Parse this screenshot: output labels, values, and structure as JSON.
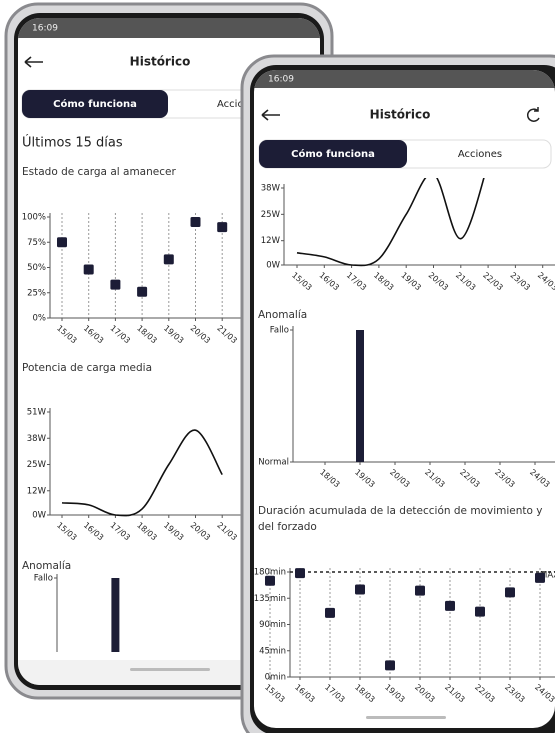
{
  "phones": [
    {
      "status_time": "16:09",
      "title": "Histórico",
      "tabs": [
        "Cómo funciona",
        "Acciones"
      ],
      "heading": "Últimos 15 días",
      "charts": [
        {
          "type": "scatter",
          "title": "Estado de carga al amanecer",
          "categories": [
            "15/03",
            "16/03",
            "17/03",
            "18/03",
            "19/03",
            "20/03",
            "21/03"
          ],
          "values": [
            75,
            48,
            33,
            26,
            58,
            95,
            90
          ],
          "color": "#1c1d36",
          "grid": "x",
          "ylim": [
            0,
            100
          ],
          "yticks": [
            {
              "value": 0,
              "label": "0%"
            },
            {
              "value": 25,
              "label": "25%"
            },
            {
              "value": 50,
              "label": "50%"
            },
            {
              "value": 75,
              "label": "75%"
            },
            {
              "value": 100,
              "label": "100%"
            }
          ]
        },
        {
          "type": "line",
          "title": "Potencia de carga media",
          "categories": [
            "15/03",
            "16/03",
            "17/03",
            "18/03",
            "19/03",
            "20/03",
            "21/03"
          ],
          "values": [
            6,
            5,
            0,
            3,
            25,
            42,
            20
          ],
          "color": "#111111",
          "ylim": [
            0,
            51
          ],
          "yticks": [
            {
              "value": 0,
              "label": "0W"
            },
            {
              "value": 12,
              "label": "12W"
            },
            {
              "value": 25,
              "label": "25W"
            },
            {
              "value": 38,
              "label": "38W"
            },
            {
              "value": 51,
              "label": "51W"
            }
          ]
        },
        {
          "type": "bar",
          "title": "Anomalía",
          "values": [
            0,
            0,
            1
          ],
          "color": "#1c1d36",
          "ylim": [
            0,
            1
          ],
          "yticks": [
            {
              "value": 1,
              "label": "Fallo"
            }
          ]
        }
      ]
    },
    {
      "status_time": "16:09",
      "title": "Histórico",
      "tabs": [
        "Cómo funciona",
        "Acciones"
      ],
      "charts": [
        {
          "type": "line",
          "categories": [
            "15/03",
            "16/03",
            "17/03",
            "18/03",
            "19/03",
            "20/03",
            "21/03",
            "22/03",
            "23/03",
            "24/03"
          ],
          "values": [
            6,
            4,
            0,
            3,
            25,
            45,
            13,
            50,
            null,
            null
          ],
          "color": "#111111",
          "ylim": [
            0,
            38
          ],
          "yticks": [
            {
              "value": 0,
              "label": "0W"
            },
            {
              "value": 12,
              "label": "12W"
            },
            {
              "value": 25,
              "label": "25W"
            },
            {
              "value": 38,
              "label": "38W"
            }
          ]
        },
        {
          "type": "bar",
          "title": "Anomalía",
          "categories": [
            "18/03",
            "19/03",
            "20/03",
            "21/03",
            "22/03",
            "23/03",
            "24/03"
          ],
          "values": [
            0,
            1,
            0,
            0,
            0,
            0,
            0
          ],
          "color": "#1c1d36",
          "ylim": [
            0,
            1
          ],
          "yticks": [
            {
              "value": 0,
              "label": "Normal"
            },
            {
              "value": 1,
              "label": "Fallo"
            }
          ]
        },
        {
          "type": "scatter",
          "title": "Duración acumulada de la detección de movimiento y del forzado",
          "categories": [
            "15/03",
            "16/03",
            "17/03",
            "18/03",
            "19/03",
            "20/03",
            "21/03",
            "22/03",
            "23/03",
            "24/03"
          ],
          "values": [
            165,
            178,
            110,
            150,
            20,
            148,
            122,
            112,
            145,
            170
          ],
          "color": "#1c1d36",
          "grid": "x",
          "ylim": [
            0,
            180
          ],
          "yticks": [
            {
              "value": 0,
              "label": "0min"
            },
            {
              "value": 45,
              "label": "45min"
            },
            {
              "value": 90,
              "label": "90min"
            },
            {
              "value": 135,
              "label": "135min"
            },
            {
              "value": 180,
              "label": "180min"
            }
          ],
          "max_line": {
            "value": 180,
            "label": "MAX"
          }
        }
      ]
    }
  ]
}
